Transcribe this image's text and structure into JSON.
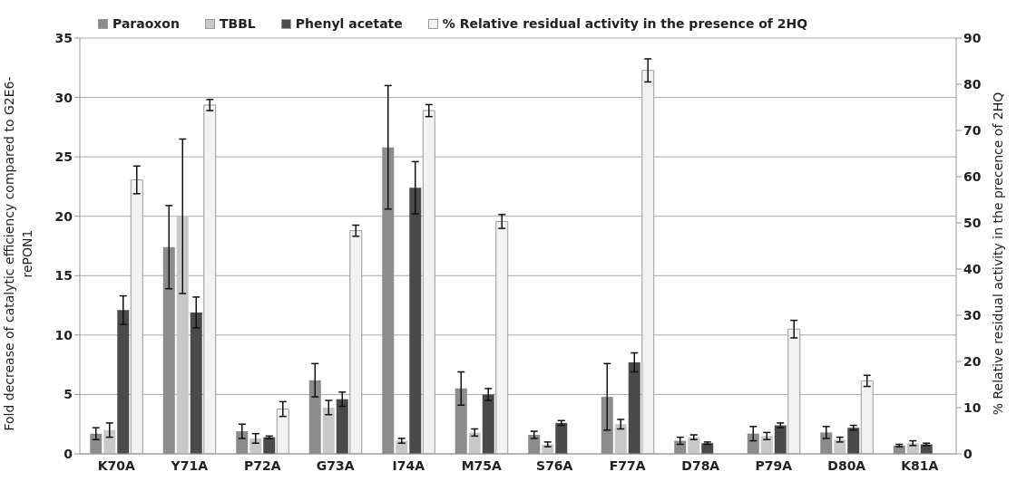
{
  "chart_data": {
    "type": "bar",
    "categories": [
      "K70A",
      "Y71A",
      "P72A",
      "G73A",
      "I74A",
      "M75A",
      "S76A",
      "F77A",
      "D78A",
      "P79A",
      "D80A",
      "K81A"
    ],
    "series": [
      {
        "name": "Paraoxon",
        "color": "#8c8c8c",
        "values": [
          1.7,
          17.4,
          1.9,
          6.2,
          25.8,
          5.5,
          1.6,
          4.8,
          1.1,
          1.7,
          1.8,
          0.7
        ],
        "errors": [
          0.5,
          3.5,
          0.6,
          1.4,
          5.2,
          1.4,
          0.3,
          2.8,
          0.3,
          0.6,
          0.5,
          0.1
        ]
      },
      {
        "name": "TBBL",
        "color": "#c8c8c8",
        "values": [
          2.0,
          20.0,
          1.3,
          3.9,
          1.1,
          1.8,
          0.8,
          2.5,
          1.4,
          1.5,
          1.2,
          0.9
        ],
        "errors": [
          0.6,
          6.5,
          0.4,
          0.6,
          0.2,
          0.3,
          0.2,
          0.4,
          0.2,
          0.3,
          0.2,
          0.2
        ]
      },
      {
        "name": "Phenyl acetate",
        "color": "#4a4a4a",
        "values": [
          12.1,
          11.9,
          1.4,
          4.6,
          22.4,
          5.0,
          2.6,
          7.7,
          0.9,
          2.4,
          2.2,
          0.8
        ],
        "errors": [
          1.2,
          1.3,
          0.1,
          0.6,
          2.2,
          0.5,
          0.2,
          0.8,
          0.1,
          0.2,
          0.2,
          0.1
        ]
      },
      {
        "name": "% Relative residual activity in the presence of 2HQ",
        "color": "#f2f2f2",
        "axis": "y2",
        "values": [
          59.3,
          75.5,
          9.7,
          48.3,
          74.3,
          50.3,
          null,
          83.0,
          null,
          27.0,
          15.8,
          null
        ],
        "errors": [
          3.0,
          1.2,
          1.6,
          1.2,
          1.3,
          1.5,
          null,
          2.5,
          null,
          1.9,
          1.2,
          null
        ]
      }
    ],
    "ylabel": "Fold decrease of catalytic efficiency compared to G2E6-rePON1",
    "y2label": "% Relative residual activity in the precence of 2HQ",
    "ylim": [
      0,
      35
    ],
    "yticks": [
      0,
      5,
      10,
      15,
      20,
      25,
      30,
      35
    ],
    "y2lim": [
      0,
      90
    ],
    "y2ticks": [
      0,
      10,
      20,
      30,
      40,
      50,
      60,
      70,
      80,
      90
    ],
    "grid": "y",
    "legend": "top left"
  }
}
